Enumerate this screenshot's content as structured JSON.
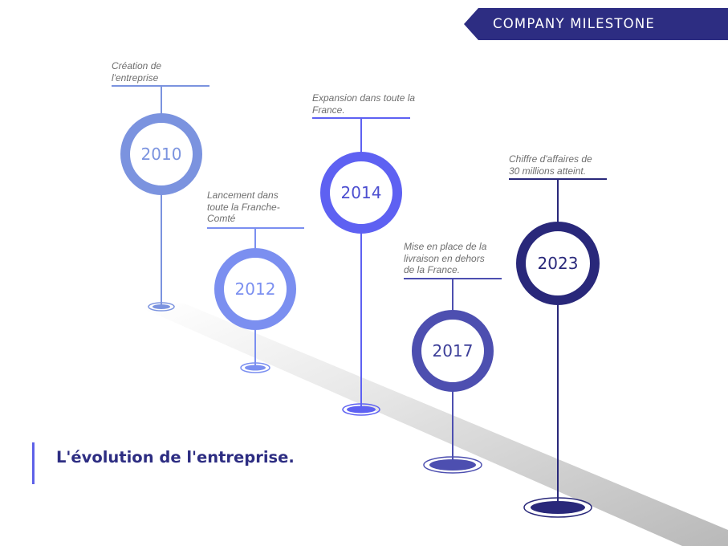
{
  "header": {
    "title": "COMPANY MILESTONE"
  },
  "subtitle": "L'évolution de l'entreprise.",
  "milestones": [
    {
      "year": "2010",
      "text": "Création de l'entreprise",
      "color": "#7b93df"
    },
    {
      "year": "2012",
      "text": "Lancement dans toute la Franche-Comté",
      "color": "#7b8ff0"
    },
    {
      "year": "2014",
      "text": "Expansion dans toute la France.",
      "color": "#5e61f2"
    },
    {
      "year": "2017",
      "text": "Mise en place de la livraison en dehors de la France.",
      "color": "#4d4fb0"
    },
    {
      "year": "2023",
      "text": "Chiffre d'affaires de 30 millions atteint.",
      "color": "#29287a"
    }
  ]
}
